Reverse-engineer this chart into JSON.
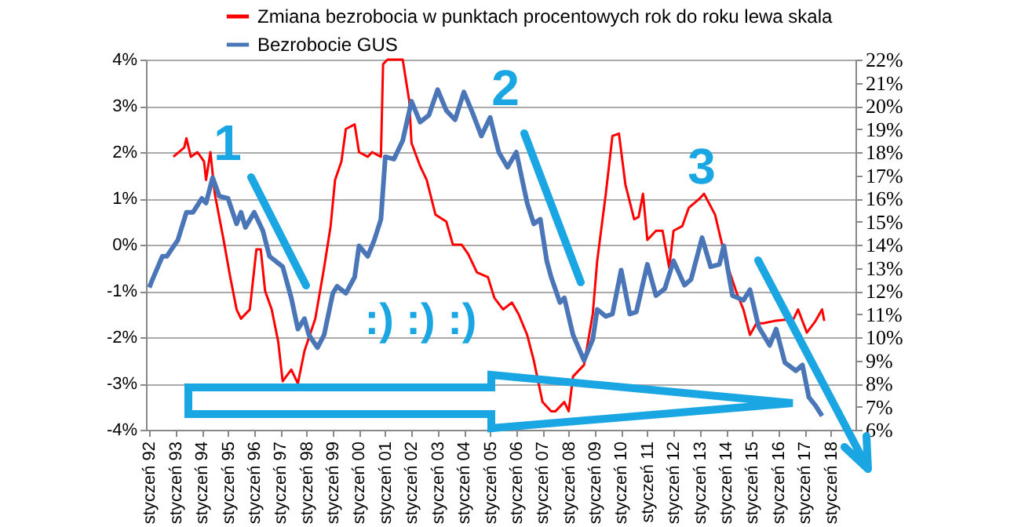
{
  "chart_data": {
    "type": "line",
    "xlim": [
      "1991-11-15",
      "2018-12-10"
    ],
    "xticks": [
      {
        "value": "1992-01",
        "label": "styczeń 92"
      },
      {
        "value": "1993-01",
        "label": "styczeń 93"
      },
      {
        "value": "1994-01",
        "label": "styczeń 94"
      },
      {
        "value": "1995-01",
        "label": "styczeń 95"
      },
      {
        "value": "1996-01",
        "label": "styczeń 96"
      },
      {
        "value": "1997-01",
        "label": "styczeń 97"
      },
      {
        "value": "1998-01",
        "label": "styczeń 98"
      },
      {
        "value": "1999-01",
        "label": "styczeń 99"
      },
      {
        "value": "2000-01",
        "label": "styczeń 00"
      },
      {
        "value": "2001-01",
        "label": "styczeń 01"
      },
      {
        "value": "2002-01",
        "label": "styczeń 02"
      },
      {
        "value": "2003-01",
        "label": "styczeń 03"
      },
      {
        "value": "2004-01",
        "label": "styczeń 04"
      },
      {
        "value": "2005-01",
        "label": "styczeń 05"
      },
      {
        "value": "2006-01",
        "label": "styczeń 06"
      },
      {
        "value": "2007-01",
        "label": "styczeń 07"
      },
      {
        "value": "2008-01",
        "label": "styczeń 08"
      },
      {
        "value": "2009-01",
        "label": "styczeń 09"
      },
      {
        "value": "2010-01",
        "label": "styczeń 10"
      },
      {
        "value": "2011-01",
        "label": "styczeń 11"
      },
      {
        "value": "2012-01",
        "label": "styczeń 12"
      },
      {
        "value": "2013-01",
        "label": "styczeń 13"
      },
      {
        "value": "2014-01",
        "label": "styczeń 14"
      },
      {
        "value": "2015-01",
        "label": "styczeń 15"
      },
      {
        "value": "2016-01",
        "label": "styczeń 16"
      },
      {
        "value": "2017-01",
        "label": "styczeń 17"
      },
      {
        "value": "2018-01",
        "label": "styczeń 18"
      }
    ],
    "ylim": [
      -4,
      4
    ],
    "yticks": [
      {
        "value": -4,
        "label": "-4%"
      },
      {
        "value": -3,
        "label": "-3%"
      },
      {
        "value": -2,
        "label": "-2%"
      },
      {
        "value": -1,
        "label": "-1%"
      },
      {
        "value": 0,
        "label": "0%"
      },
      {
        "value": 1,
        "label": "1%"
      },
      {
        "value": 2,
        "label": "2%"
      },
      {
        "value": 3,
        "label": "3%"
      },
      {
        "value": 4,
        "label": "4%"
      }
    ],
    "y2lim": [
      6,
      22
    ],
    "y2ticks": [
      {
        "value": 6,
        "label": "6%"
      },
      {
        "value": 7,
        "label": "7%"
      },
      {
        "value": 8,
        "label": "8%"
      },
      {
        "value": 9,
        "label": "9%"
      },
      {
        "value": 10,
        "label": "10%"
      },
      {
        "value": 11,
        "label": "11%"
      },
      {
        "value": 12,
        "label": "12%"
      },
      {
        "value": 13,
        "label": "13%"
      },
      {
        "value": 14,
        "label": "14%"
      },
      {
        "value": 15,
        "label": "15%"
      },
      {
        "value": 16,
        "label": "16%"
      },
      {
        "value": 17,
        "label": "17%"
      },
      {
        "value": 18,
        "label": "18%"
      },
      {
        "value": 19,
        "label": "19%"
      },
      {
        "value": 20,
        "label": "20%"
      },
      {
        "value": 21,
        "label": "21%"
      },
      {
        "value": 22,
        "label": "22%"
      }
    ],
    "grid": "y",
    "legend": "top",
    "annotations": [
      "1",
      "2",
      "3",
      ":) :) :)"
    ],
    "series": [
      {
        "name": "Zmiana bezrobocia w punktach procentowych rok do roku lewa skala",
        "color": "#ff0000",
        "axis": "y",
        "x": [
          "1992-12",
          "1993-05",
          "1993-06",
          "1993-08",
          "1993-11",
          "1994-02",
          "1994-03",
          "1994-05",
          "1994-07",
          "1994-11",
          "1995-02",
          "1995-05",
          "1995-07",
          "1995-11",
          "1996-02",
          "1996-04",
          "1996-06",
          "1996-09",
          "1996-12",
          "1997-02",
          "1997-06",
          "1997-09",
          "1997-12",
          "1998-05",
          "1998-09",
          "1998-12",
          "1999-02",
          "1999-05",
          "1999-07",
          "1999-11",
          "2000-01",
          "2000-05",
          "2000-07",
          "2000-11",
          "2000-12",
          "2001-02",
          "2001-09",
          "2001-12",
          "2002-01",
          "2002-05",
          "2002-08",
          "2002-12",
          "2003-05",
          "2003-08",
          "2003-12",
          "2004-03",
          "2004-07",
          "2004-12",
          "2005-03",
          "2005-07",
          "2005-11",
          "2006-02",
          "2006-06",
          "2006-09",
          "2007-01",
          "2007-05",
          "2007-07",
          "2007-11",
          "2008-01",
          "2008-03",
          "2008-08",
          "2008-12",
          "2009-02",
          "2009-06",
          "2009-09",
          "2009-12",
          "2010-03",
          "2010-07",
          "2010-09",
          "2010-11",
          "2011-01",
          "2011-05",
          "2011-08",
          "2011-11",
          "2012-01",
          "2012-05",
          "2012-08",
          "2013-01",
          "2013-03",
          "2013-08",
          "2013-12",
          "2014-02",
          "2014-06",
          "2014-09",
          "2014-12",
          "2015-03",
          "2015-06",
          "2015-11",
          "2016-08",
          "2016-10",
          "2017-02",
          "2017-06",
          "2017-09",
          "2017-10"
        ],
        "values": [
          1.9,
          2.1,
          2.3,
          1.9,
          2.0,
          1.8,
          1.4,
          2.0,
          1.1,
          0.1,
          -0.7,
          -1.4,
          -1.6,
          -1.4,
          -0.1,
          -0.1,
          -1.0,
          -1.4,
          -2.1,
          -2.95,
          -2.7,
          -3.0,
          -2.3,
          -1.6,
          -0.5,
          0.4,
          1.4,
          1.8,
          2.5,
          2.6,
          2.0,
          1.9,
          2.0,
          1.9,
          3.9,
          4.0,
          4.0,
          3.1,
          2.2,
          1.7,
          1.4,
          0.65,
          0.5,
          0.0,
          0.0,
          -0.2,
          -0.6,
          -0.7,
          -1.15,
          -1.4,
          -1.25,
          -1.5,
          -1.95,
          -2.5,
          -3.4,
          -3.6,
          -3.6,
          -3.4,
          -3.6,
          -2.85,
          -2.6,
          -1.5,
          -0.35,
          1.1,
          2.35,
          2.4,
          1.3,
          0.55,
          0.6,
          1.1,
          0.1,
          0.3,
          0.3,
          -0.5,
          0.3,
          0.4,
          0.8,
          1.0,
          1.1,
          0.65,
          -0.15,
          -0.5,
          -1.05,
          -1.4,
          -1.95,
          -1.7,
          -1.7,
          -1.65,
          -1.6,
          -1.4,
          -1.9,
          -1.65,
          -1.4,
          -1.65
        ]
      },
      {
        "name": "Bezrobocie GUS",
        "color": "#4a76b8",
        "axis": "y2",
        "x": [
          "1992-01",
          "1992-02",
          "1992-07",
          "1992-09",
          "1993-02",
          "1993-06",
          "1993-09",
          "1994-01",
          "1994-03",
          "1994-06",
          "1994-09",
          "1995-01",
          "1995-05",
          "1995-07",
          "1995-09",
          "1996-01",
          "1996-05",
          "1996-08",
          "1996-12",
          "1997-02",
          "1997-06",
          "1997-09",
          "1997-12",
          "1998-02",
          "1998-06",
          "1998-09",
          "1999-01",
          "1999-03",
          "1999-07",
          "1999-11",
          "2000-01",
          "2000-05",
          "2000-08",
          "2000-11",
          "2001-01",
          "2001-05",
          "2001-09",
          "2002-01",
          "2002-05",
          "2002-09",
          "2003-01",
          "2003-05",
          "2003-09",
          "2004-01",
          "2004-05",
          "2004-09",
          "2005-01",
          "2005-05",
          "2005-09",
          "2006-01",
          "2006-06",
          "2006-09",
          "2006-12",
          "2007-03",
          "2007-05",
          "2007-09",
          "2007-11",
          "2008-03",
          "2008-08",
          "2008-12",
          "2009-02",
          "2009-06",
          "2009-09",
          "2010-01",
          "2010-05",
          "2010-08",
          "2011-01",
          "2011-05",
          "2011-09",
          "2012-01",
          "2012-06",
          "2012-09",
          "2013-02",
          "2013-06",
          "2013-10",
          "2013-12",
          "2014-04",
          "2014-09",
          "2014-12",
          "2015-04",
          "2015-09",
          "2015-12",
          "2016-04",
          "2016-09",
          "2016-12",
          "2017-03",
          "2017-06",
          "2017-09"
        ],
        "values": [
          12.15,
          12.4,
          13.5,
          13.5,
          14.2,
          15.4,
          15.4,
          16.0,
          15.8,
          16.9,
          16.1,
          16.0,
          14.9,
          15.4,
          14.75,
          15.4,
          14.6,
          13.5,
          13.2,
          13.05,
          11.7,
          10.35,
          10.8,
          10.1,
          9.55,
          10.1,
          11.9,
          12.2,
          11.9,
          12.6,
          13.95,
          13.5,
          14.2,
          15.1,
          17.8,
          17.7,
          18.5,
          20.2,
          19.3,
          19.6,
          20.7,
          19.8,
          19.4,
          20.6,
          19.7,
          18.7,
          19.5,
          18.0,
          17.35,
          18.0,
          15.8,
          14.9,
          15.1,
          13.3,
          12.6,
          11.5,
          11.7,
          10.1,
          9.0,
          9.9,
          11.2,
          10.9,
          11.0,
          12.9,
          11.0,
          11.1,
          13.15,
          11.8,
          12.1,
          13.3,
          12.25,
          12.5,
          14.3,
          13.05,
          13.15,
          13.95,
          11.8,
          11.6,
          12.05,
          10.45,
          9.65,
          10.35,
          8.9,
          8.55,
          8.8,
          7.4,
          7.05,
          6.6
        ]
      }
    ]
  }
}
